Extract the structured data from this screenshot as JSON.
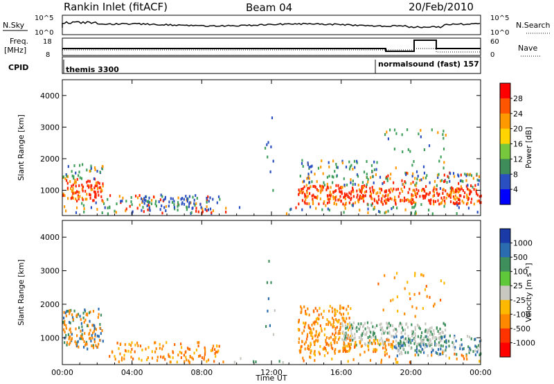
{
  "header": {
    "title": "Rankin Inlet (fitACF)",
    "beam": "Beam 04",
    "date": "20/Feb/2010"
  },
  "top_panels": {
    "nsky_label": "N.Sky",
    "nsky_ticks": [
      "10^5",
      "10^0"
    ],
    "nsearch_label": "N.Search",
    "nsearch_ticks": [
      "10^5",
      "10^0"
    ],
    "freq_label": "Freq.",
    "freq_unit": "[MHz]",
    "freq_ticks": [
      "18",
      "8"
    ],
    "nave_label": "Nave",
    "nave_ticks": [
      "60",
      "0"
    ],
    "cpid_label": "CPID",
    "cpid_segments": [
      {
        "start_hour": 0,
        "text": "themis 3300"
      },
      {
        "start_hour": 18,
        "text": "normalsound (fast) 157"
      }
    ]
  },
  "chart_data": [
    {
      "type": "heatmap",
      "name": "power-panel",
      "xlabel": "",
      "ylabel": "Slant Range [km]",
      "x_ticks": [
        "00:00",
        "04:00",
        "08:00",
        "12:00",
        "16:00",
        "20:00",
        "00:00"
      ],
      "xlim_hours": [
        0,
        24
      ],
      "ylim": [
        200,
        4500
      ],
      "y_ticks": [
        1000,
        2000,
        3000,
        4000
      ],
      "colorbar_label": "Power [dB]",
      "colorbar_ticks": [
        "28",
        "24",
        "20",
        "16",
        "12",
        "8",
        "4"
      ],
      "colorbar_colors": [
        "#ff0000",
        "#ff5500",
        "#ff9900",
        "#ffd400",
        "#77c83c",
        "#3e8c5a",
        "#2a4fc0",
        "#0000ff"
      ]
    },
    {
      "type": "heatmap",
      "name": "velocity-panel",
      "xlabel": "Time UT",
      "ylabel": "Slant Range [km]",
      "x_ticks": [
        "00:00",
        "04:00",
        "08:00",
        "12:00",
        "16:00",
        "20:00",
        "00:00"
      ],
      "xlim_hours": [
        0,
        24
      ],
      "ylim": [
        200,
        4500
      ],
      "y_ticks": [
        1000,
        2000,
        3000,
        4000
      ],
      "colorbar_label": "Velocity [m s⁻¹]",
      "colorbar_ticks": [
        "1000",
        "500",
        "100",
        "25",
        "-25",
        "-100",
        "-500",
        "-1000"
      ],
      "colorbar_colors": [
        "#1a3aa8",
        "#2b6bb0",
        "#3f8f5c",
        "#5fc83a",
        "#c8c8c0",
        "#ffb800",
        "#ff8800",
        "#ff3300",
        "#ff0000"
      ]
    }
  ],
  "colors": {
    "power_red": "#ff2200",
    "power_orange": "#ff9900",
    "power_green": "#3f9f5a",
    "power_blue": "#2a4fc0",
    "vel_orange": "#ff8800",
    "vel_gray": "#c8c8c0",
    "vel_green": "#3f8f5c",
    "vel_blue": "#2b6bb0"
  }
}
